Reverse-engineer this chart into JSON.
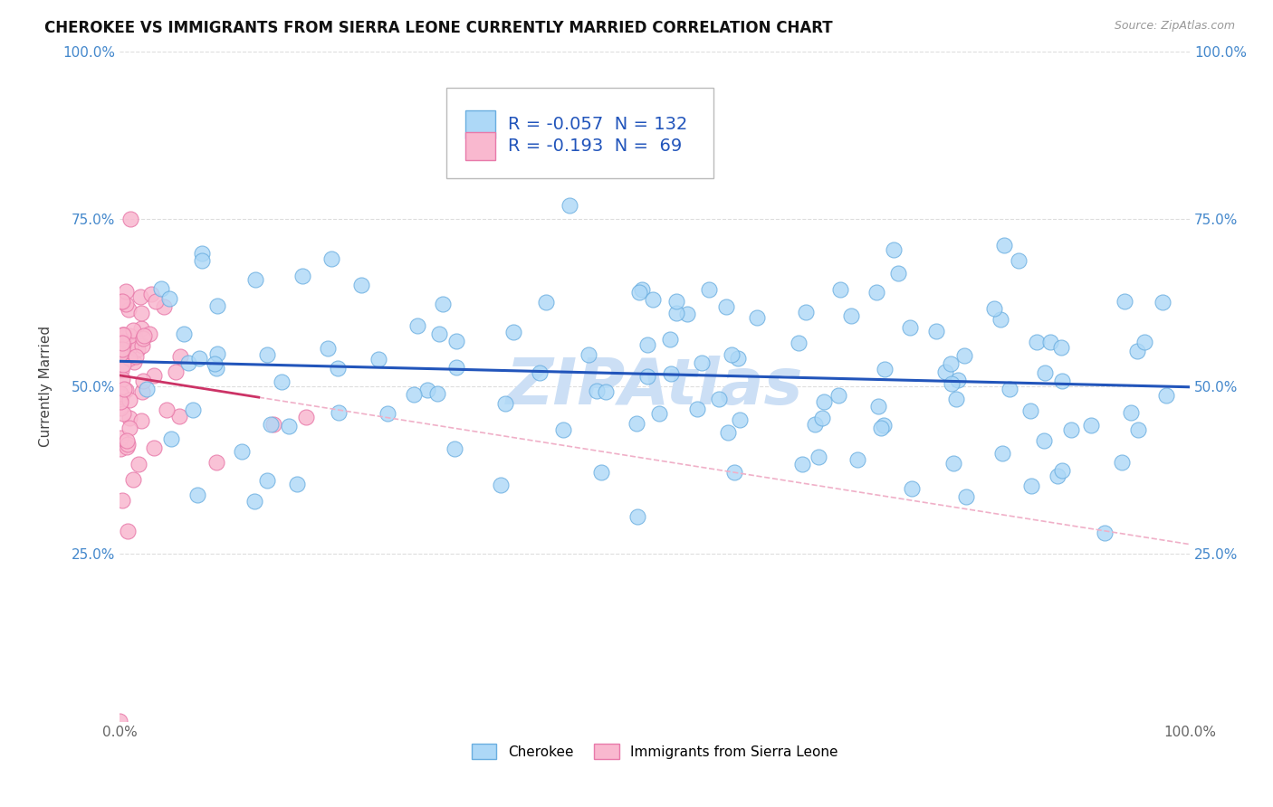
{
  "title": "CHEROKEE VS IMMIGRANTS FROM SIERRA LEONE CURRENTLY MARRIED CORRELATION CHART",
  "source": "Source: ZipAtlas.com",
  "ylabel": "Currently Married",
  "cherokee_R": "-0.057",
  "cherokee_N": "132",
  "sierra_leone_R": "-0.193",
  "sierra_leone_N": "69",
  "cherokee_color": "#add8f7",
  "cherokee_edge": "#6aaee0",
  "sierra_leone_color": "#f9b8cf",
  "sierra_leone_edge": "#e87aaa",
  "trend_cherokee_color": "#2255bb",
  "trend_sierra_leone_color": "#cc3366",
  "trend_sierra_dashed_color": "#f0b0c8",
  "background_color": "#ffffff",
  "grid_color": "#dddddd",
  "title_fontsize": 12,
  "axis_label_fontsize": 11,
  "legend_fontsize": 14,
  "tick_fontsize": 11,
  "legend_label_cherokee": "Cherokee",
  "legend_label_sierra": "Immigrants from Sierra Leone",
  "watermark_text": "ZIPAtlas",
  "watermark_color": "#ccdff5",
  "xlim": [
    0.0,
    1.0
  ],
  "ylim": [
    0.0,
    1.0
  ],
  "yticks": [
    0.25,
    0.5,
    0.75,
    1.0
  ],
  "xticks": [
    0.0,
    1.0
  ],
  "cherokee_seed": 17,
  "sierra_seed": 99
}
